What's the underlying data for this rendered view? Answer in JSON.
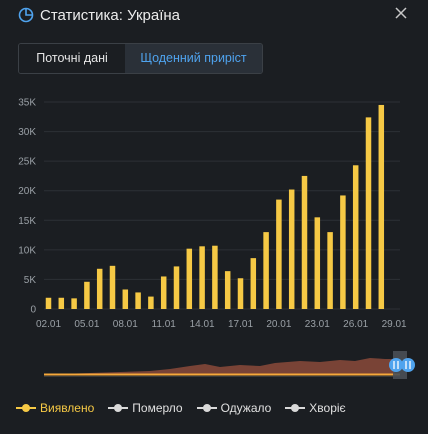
{
  "header": {
    "title": "Статистика: Україна"
  },
  "tabs": [
    {
      "label": "Поточні дані",
      "active": false
    },
    {
      "label": "Щоденний приріст",
      "active": true
    }
  ],
  "legend": [
    {
      "label": "Виявлено",
      "color": "#f6c945"
    },
    {
      "label": "Померло",
      "color": "#d9d9d9"
    },
    {
      "label": "Одужало",
      "color": "#d9d9d9"
    },
    {
      "label": "Хворіє",
      "color": "#d9d9d9"
    }
  ],
  "colors": {
    "accent": "#4fa3ee",
    "bar": "#f6c945",
    "background": "#1b1e22",
    "navigator": "#8a4a3a"
  },
  "chart_data": {
    "type": "bar",
    "x": [
      "02.01",
      "03.01",
      "04.01",
      "05.01",
      "06.01",
      "07.01",
      "08.01",
      "09.01",
      "10.01",
      "11.01",
      "12.01",
      "13.01",
      "14.01",
      "15.01",
      "16.01",
      "17.01",
      "18.01",
      "19.01",
      "20.01",
      "21.01",
      "22.01",
      "23.01",
      "24.01",
      "25.01",
      "26.01",
      "27.01",
      "28.01"
    ],
    "tick_labels": [
      "02.01",
      "05.01",
      "08.01",
      "11.01",
      "14.01",
      "17.01",
      "20.01",
      "23.01",
      "26.01",
      "29.01"
    ],
    "series": [
      {
        "name": "Виявлено",
        "values": [
          1900,
          1900,
          1800,
          4600,
          6800,
          7300,
          3300,
          2800,
          2100,
          5500,
          7200,
          10200,
          10600,
          10700,
          6400,
          5200,
          8600,
          13000,
          18500,
          20200,
          22500,
          15500,
          13000,
          19200,
          24300,
          32400,
          34500
        ]
      }
    ],
    "yticks": [
      "0",
      "5K",
      "10K",
      "15K",
      "20K",
      "25K",
      "30K",
      "35K"
    ],
    "ylim": [
      0,
      35000
    ],
    "grid": true
  }
}
